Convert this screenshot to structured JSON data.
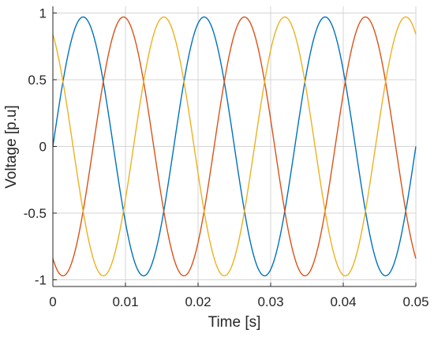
{
  "chart_data": {
    "type": "line",
    "title": "",
    "xlabel": "Time [s]",
    "ylabel": "Voltage [p.u]",
    "xlim": [
      0,
      0.05
    ],
    "ylim": [
      -1.05,
      1.05
    ],
    "grid": true,
    "xticks": [
      0,
      0.01,
      0.02,
      0.03,
      0.04,
      0.05
    ],
    "xtick_labels": [
      "0",
      "0.01",
      "0.02",
      "0.03",
      "0.04",
      "0.05"
    ],
    "yticks": [
      1,
      0.5,
      0,
      -0.5,
      -1
    ],
    "ytick_labels": [
      "1",
      "0.5",
      "0",
      "-0.5",
      "-1"
    ],
    "series": [
      {
        "color": "#0072BD",
        "amplitude": 0.97,
        "frequency_hz": 60,
        "phase_deg": 0
      },
      {
        "color": "#D95319",
        "amplitude": 0.97,
        "frequency_hz": 60,
        "phase_deg": -120
      },
      {
        "color": "#EDB120",
        "amplitude": 0.97,
        "frequency_hz": 60,
        "phase_deg": 120
      }
    ]
  }
}
